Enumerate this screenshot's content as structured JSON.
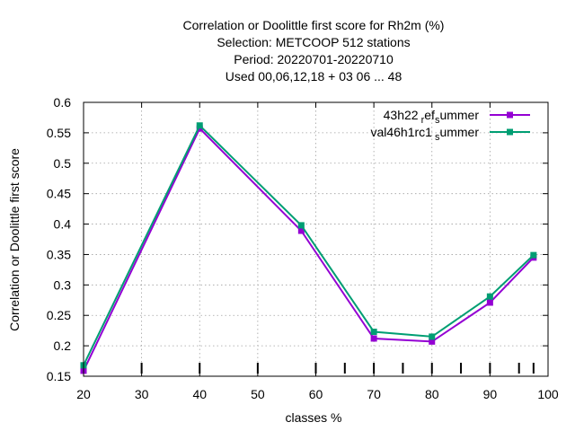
{
  "chart_data": {
    "type": "line",
    "title_lines": [
      "Correlation or Doolittle first score  for Rh2m (%)",
      "Selection: METCOOP    512 stations",
      "Period: 20220701-20220710",
      "Used  00,06,12,18  + 03 06 ... 48"
    ],
    "xlabel": "classes %",
    "ylabel": "Correlation or Doolittle first score",
    "xlim": [
      20,
      100
    ],
    "ylim": [
      0.15,
      0.6
    ],
    "x_ticks": [
      20,
      30,
      40,
      50,
      60,
      70,
      80,
      90,
      100
    ],
    "y_ticks": [
      0.15,
      0.2,
      0.25,
      0.3,
      0.35,
      0.4,
      0.45,
      0.5,
      0.55,
      0.6
    ],
    "y_tick_labels": [
      "0.15",
      "0.2",
      "0.25",
      "0.3",
      "0.35",
      "0.4",
      "0.45",
      "0.5",
      "0.55",
      "0.6"
    ],
    "class_marks": [
      20,
      30,
      40,
      50,
      60,
      65,
      70,
      75,
      80,
      85,
      90,
      95,
      97.5
    ],
    "grid": true,
    "legend_position": "top-right",
    "series": [
      {
        "name_parts": [
          "43h22",
          "r",
          "ef",
          "s",
          "ummer"
        ],
        "color": "#9400d3",
        "x": [
          20,
          40,
          57.5,
          70,
          80,
          90,
          97.5
        ],
        "values": [
          0.159,
          0.557,
          0.389,
          0.212,
          0.207,
          0.271,
          0.345
        ]
      },
      {
        "name_parts": [
          "val46h1rc1",
          "s",
          "ummer"
        ],
        "color": "#009e73",
        "x": [
          20,
          40,
          57.5,
          70,
          80,
          90,
          97.5
        ],
        "values": [
          0.168,
          0.562,
          0.398,
          0.223,
          0.215,
          0.281,
          0.349
        ]
      }
    ]
  }
}
